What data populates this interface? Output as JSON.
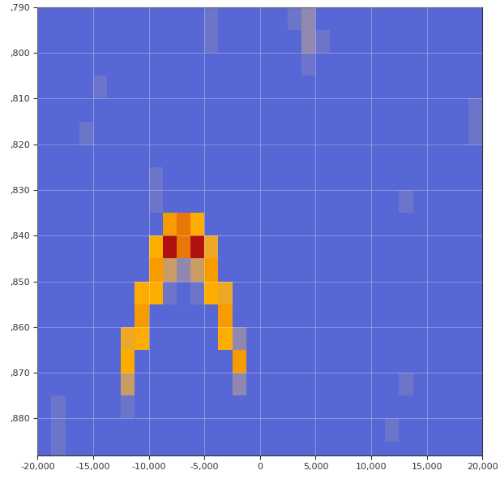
{
  "chart_data": {
    "type": "heatmap",
    "x_edges": [
      -20000,
      -18750,
      -17500,
      -16250,
      -15000,
      -13750,
      -12500,
      -11250,
      -10000,
      -8750,
      -7500,
      -6250,
      -5000,
      -3750,
      -2500,
      -1250,
      0,
      1250,
      2500,
      3750,
      5000,
      6250,
      7500,
      8750,
      10000,
      11250,
      12500,
      13750,
      15000,
      16250,
      17500,
      18750,
      20000
    ],
    "y_edges": [
      0.79,
      0.795,
      0.8,
      0.805,
      0.81,
      0.815,
      0.82,
      0.825,
      0.83,
      0.835,
      0.84,
      0.845,
      0.85,
      0.855,
      0.86,
      0.865,
      0.87,
      0.875,
      0.88,
      0.885,
      0.89
    ],
    "cells": [
      [
        1,
        1,
        1,
        1,
        1,
        1,
        1,
        1,
        1,
        1,
        1,
        1,
        2,
        1,
        1,
        1,
        1,
        1,
        2,
        3,
        1,
        1,
        1,
        1,
        1,
        1,
        1,
        1,
        1,
        1,
        1,
        1
      ],
      [
        1,
        1,
        1,
        1,
        1,
        1,
        1,
        1,
        1,
        1,
        1,
        1,
        2,
        1,
        1,
        1,
        1,
        1,
        1,
        3,
        2,
        1,
        1,
        1,
        1,
        1,
        1,
        1,
        1,
        1,
        1,
        1
      ],
      [
        1,
        1,
        1,
        1,
        1,
        1,
        1,
        1,
        1,
        1,
        1,
        1,
        1,
        1,
        1,
        1,
        1,
        1,
        1,
        2,
        1,
        1,
        1,
        1,
        1,
        1,
        1,
        1,
        1,
        1,
        1,
        1
      ],
      [
        1,
        1,
        1,
        1,
        2,
        1,
        1,
        1,
        1,
        1,
        1,
        1,
        1,
        1,
        1,
        1,
        1,
        1,
        1,
        1,
        1,
        1,
        1,
        1,
        1,
        1,
        1,
        1,
        1,
        1,
        1,
        1
      ],
      [
        1,
        1,
        1,
        1,
        1,
        1,
        1,
        1,
        1,
        1,
        1,
        1,
        1,
        1,
        1,
        1,
        1,
        1,
        1,
        1,
        1,
        1,
        1,
        1,
        1,
        1,
        1,
        1,
        1,
        1,
        1,
        2
      ],
      [
        1,
        1,
        1,
        2,
        1,
        1,
        1,
        1,
        1,
        1,
        1,
        1,
        1,
        1,
        1,
        1,
        1,
        1,
        1,
        1,
        1,
        1,
        1,
        1,
        1,
        1,
        1,
        1,
        1,
        1,
        1,
        2
      ],
      [
        1,
        1,
        1,
        1,
        1,
        1,
        1,
        1,
        1,
        1,
        1,
        1,
        1,
        1,
        1,
        1,
        1,
        1,
        1,
        1,
        1,
        1,
        1,
        1,
        1,
        1,
        1,
        1,
        1,
        1,
        1,
        1
      ],
      [
        1,
        1,
        1,
        1,
        1,
        1,
        1,
        1,
        2,
        1,
        1,
        1,
        1,
        1,
        1,
        1,
        1,
        1,
        1,
        1,
        1,
        1,
        1,
        1,
        1,
        1,
        1,
        1,
        1,
        1,
        1,
        1
      ],
      [
        1,
        1,
        1,
        1,
        1,
        1,
        1,
        1,
        2,
        1,
        1,
        1,
        1,
        1,
        1,
        1,
        1,
        1,
        1,
        1,
        1,
        1,
        1,
        1,
        1,
        1,
        2,
        1,
        1,
        1,
        1,
        1
      ],
      [
        1,
        1,
        1,
        1,
        1,
        1,
        1,
        1,
        1,
        7,
        8,
        6,
        1,
        1,
        1,
        1,
        1,
        1,
        1,
        1,
        1,
        1,
        1,
        1,
        1,
        1,
        1,
        1,
        1,
        1,
        1,
        1
      ],
      [
        1,
        1,
        1,
        1,
        1,
        1,
        1,
        1,
        6,
        10,
        8,
        10,
        5,
        1,
        1,
        1,
        1,
        1,
        1,
        1,
        1,
        1,
        1,
        1,
        1,
        1,
        1,
        1,
        1,
        1,
        1,
        1
      ],
      [
        1,
        1,
        1,
        1,
        1,
        1,
        1,
        1,
        7,
        4,
        3,
        4,
        7,
        1,
        1,
        1,
        1,
        1,
        1,
        1,
        1,
        1,
        1,
        1,
        1,
        1,
        1,
        1,
        1,
        1,
        1,
        1
      ],
      [
        1,
        1,
        1,
        1,
        1,
        1,
        1,
        6,
        6,
        2,
        1,
        2,
        6,
        5,
        1,
        1,
        1,
        1,
        1,
        1,
        1,
        1,
        1,
        1,
        1,
        1,
        1,
        1,
        1,
        1,
        1,
        1
      ],
      [
        1,
        1,
        1,
        1,
        1,
        1,
        1,
        7,
        1,
        1,
        1,
        1,
        1,
        7,
        1,
        1,
        1,
        1,
        1,
        1,
        1,
        1,
        1,
        1,
        1,
        1,
        1,
        1,
        1,
        1,
        1,
        1
      ],
      [
        1,
        1,
        1,
        1,
        1,
        1,
        5,
        6,
        1,
        1,
        1,
        1,
        1,
        6,
        3,
        1,
        1,
        1,
        1,
        1,
        1,
        1,
        1,
        1,
        1,
        1,
        1,
        1,
        1,
        1,
        1,
        1
      ],
      [
        1,
        1,
        1,
        1,
        1,
        1,
        6,
        1,
        1,
        1,
        1,
        1,
        1,
        1,
        7,
        1,
        1,
        1,
        1,
        1,
        1,
        1,
        1,
        1,
        1,
        1,
        1,
        1,
        1,
        1,
        1,
        1
      ],
      [
        1,
        1,
        1,
        1,
        1,
        1,
        4,
        1,
        1,
        1,
        1,
        1,
        1,
        1,
        3,
        1,
        1,
        1,
        1,
        1,
        1,
        1,
        1,
        1,
        1,
        1,
        2,
        1,
        1,
        1,
        1,
        1
      ],
      [
        1,
        2,
        1,
        1,
        1,
        1,
        2,
        1,
        1,
        1,
        1,
        1,
        1,
        1,
        1,
        1,
        1,
        1,
        1,
        1,
        1,
        1,
        1,
        1,
        1,
        1,
        1,
        1,
        1,
        1,
        1,
        1
      ],
      [
        1,
        2,
        1,
        1,
        1,
        1,
        1,
        1,
        1,
        1,
        1,
        1,
        1,
        1,
        1,
        1,
        1,
        1,
        1,
        1,
        1,
        1,
        1,
        1,
        1,
        2,
        1,
        1,
        1,
        1,
        1,
        1
      ],
      [
        1,
        2,
        1,
        1,
        1,
        1,
        1,
        1,
        1,
        1,
        1,
        1,
        1,
        1,
        1,
        1,
        1,
        1,
        1,
        1,
        1,
        1,
        1,
        1,
        1,
        1,
        1,
        1,
        1,
        1,
        1,
        1
      ]
    ],
    "color_range": [
      0,
      10
    ],
    "xlim": [
      -20000,
      20000
    ],
    "xticks": [
      {
        "value": -20000,
        "label": "-20,000"
      },
      {
        "value": -15000,
        "label": "-15,000"
      },
      {
        "value": -10000,
        "label": "-10,000"
      },
      {
        "value": -5000,
        "label": "-5,000"
      },
      0,
      {
        "value": 5000,
        "label": "5,000"
      },
      {
        "value": 10000,
        "label": "10,000"
      },
      {
        "value": 15000,
        "label": "15,000"
      },
      {
        "value": 20000,
        "label": "20,000"
      }
    ],
    "ylim": [
      0.888,
      0.79
    ],
    "yticks": [
      {
        "value": 0.79,
        "label": ",790"
      },
      {
        "value": 0.8,
        "label": ",800"
      },
      {
        "value": 0.81,
        "label": ",810"
      },
      {
        "value": 0.82,
        "label": ",820"
      },
      {
        "value": 0.83,
        "label": ",830"
      },
      {
        "value": 0.84,
        "label": ",840"
      },
      {
        "value": 0.85,
        "label": ",850"
      },
      {
        "value": 0.86,
        "label": ",860"
      },
      {
        "value": 0.87,
        "label": ",870"
      },
      {
        "value": 0.88,
        "label": ",880"
      }
    ],
    "grid": true
  }
}
